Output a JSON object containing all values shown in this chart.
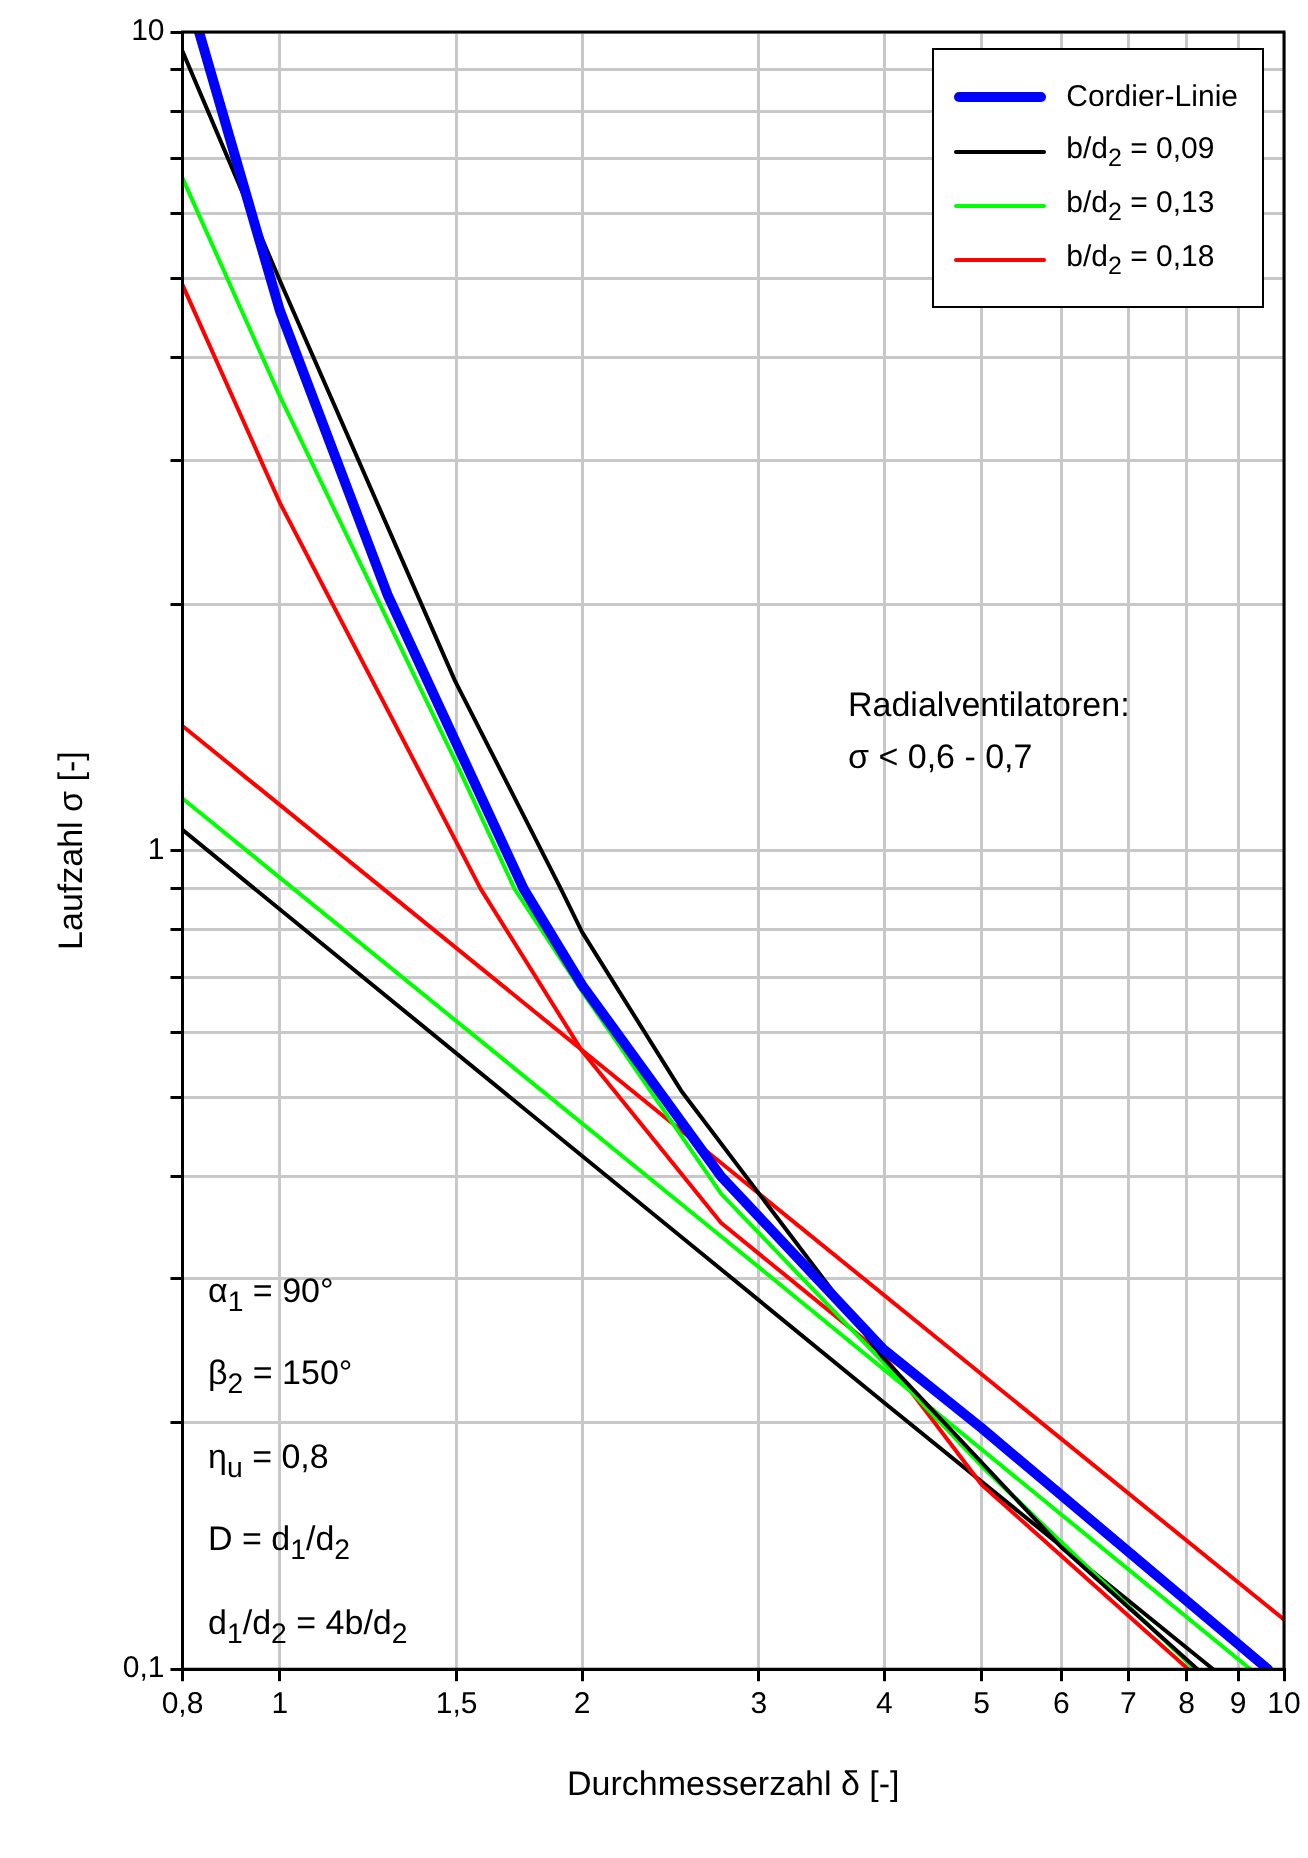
{
  "chart_data": {
    "type": "line",
    "xlabel": "Durchmesserzahl δ [-]",
    "ylabel": "Laufzahl σ [-]",
    "log": "xy",
    "xlim": [
      0.8,
      10
    ],
    "ylim": [
      0.1,
      10
    ],
    "xticks": [
      {
        "value": 0.8,
        "label": "0,8"
      },
      1,
      {
        "value": 1.5,
        "label": "1,5"
      },
      2,
      3,
      4,
      5,
      6,
      7,
      8,
      9,
      10
    ],
    "yticks": [
      {
        "value": 0.1,
        "label": "0,1"
      },
      {
        "value": 0.2,
        "label": null
      },
      {
        "value": 0.3,
        "label": null
      },
      {
        "value": 0.4,
        "label": null
      },
      {
        "value": 0.5,
        "label": null
      },
      {
        "value": 0.6,
        "label": null
      },
      {
        "value": 0.7,
        "label": null
      },
      {
        "value": 0.8,
        "label": null
      },
      {
        "value": 0.9,
        "label": null
      },
      1,
      {
        "value": 2,
        "label": null
      },
      {
        "value": 3,
        "label": null
      },
      {
        "value": 4,
        "label": null
      },
      {
        "value": 5,
        "label": null
      },
      {
        "value": 6,
        "label": null
      },
      {
        "value": 7,
        "label": null
      },
      {
        "value": 8,
        "label": null
      },
      {
        "value": 9,
        "label": null
      },
      10
    ],
    "grid": true,
    "legend": "top right",
    "series": [
      {
        "name": "Cordier-Linie",
        "color": "#0000ff",
        "x": [
          0.831,
          0.942,
          1,
          1.28,
          1.749,
          2,
          2.75,
          3.99,
          5,
          9.64
        ],
        "values": [
          10,
          5.88,
          4.57,
          2.055,
          0.898,
          0.685,
          0.4,
          0.246,
          0.197,
          0.1
        ]
      },
      {
        "name": "b/d$_{2}$ = 0,09",
        "color": "#000000",
        "x": [
          0.8,
          1,
          1.494,
          1.905,
          2,
          2.51,
          3.99,
          6,
          8.2
        ],
        "values": [
          9.47,
          4.97,
          1.613,
          0.898,
          0.795,
          0.509,
          0.24,
          0.141,
          0.1
        ]
      },
      {
        "name": "b/d$_{2}$ = 0,13",
        "color": "#00ff00",
        "x": [
          0.8,
          1,
          1.494,
          1.713,
          2,
          2.75,
          3.99,
          5,
          8.15
        ],
        "values": [
          6.63,
          3.59,
          1.29,
          0.898,
          0.673,
          0.381,
          0.237,
          0.177,
          0.1
        ]
      },
      {
        "name": "b/d$_{2}$ = 0,18",
        "color": "#ff0000",
        "x": [
          0.8,
          1,
          1.585,
          2,
          2.75,
          3.99,
          5,
          8.03
        ],
        "values": [
          4.91,
          2.66,
          0.898,
          0.569,
          0.351,
          0.242,
          0.168,
          0.1
        ]
      },
      {
        "color": "#000000",
        "x": [
          0.8,
          2.75,
          3.99,
          8.5
        ],
        "values": [
          1.06,
          0.308,
          0.212,
          0.1
        ]
      },
      {
        "color": "#00ff00",
        "x": [
          0.8,
          2.75,
          9.26
        ],
        "values": [
          1.158,
          0.338,
          0.1
        ]
      },
      {
        "color": "#ff0000",
        "x": [
          0.8,
          2.51,
          10
        ],
        "values": [
          1.42,
          0.455,
          0.115
        ]
      }
    ],
    "annotations": [
      "Radialventilatoren:",
      "σ < 0,6 - 0,7",
      "α$_{1}$ = 90°",
      "β$_{2}$ = 150°",
      "η$_{u}$ = 0,8",
      "D = d$_{1}$/d$_{2}$",
      "d$_{1}$/d$_{2}$ = 4b/d$_{2}$"
    ]
  }
}
